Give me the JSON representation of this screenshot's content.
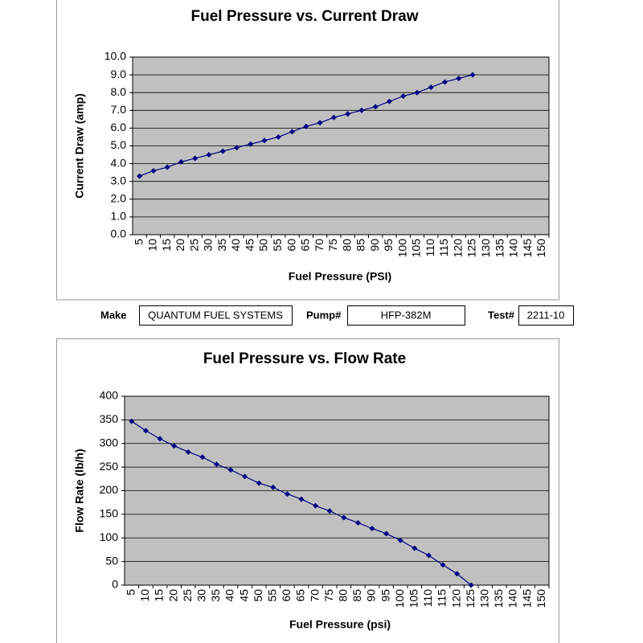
{
  "chart_data": [
    {
      "type": "line",
      "title": "Fuel Pressure vs. Current Draw",
      "x_label": "Fuel Pressure (PSI)",
      "y_label": "Current Draw (amp)",
      "categories": [
        5,
        10,
        15,
        20,
        25,
        30,
        35,
        40,
        45,
        50,
        55,
        60,
        65,
        70,
        75,
        80,
        85,
        90,
        95,
        100,
        105,
        110,
        115,
        120,
        125,
        130,
        135,
        140,
        145,
        150
      ],
      "series": [
        {
          "color": "#000080",
          "values": [
            3.3,
            3.6,
            3.8,
            4.1,
            4.3,
            4.5,
            4.7,
            4.9,
            5.1,
            5.3,
            5.5,
            5.8,
            6.1,
            6.3,
            6.6,
            6.8,
            7.0,
            7.2,
            7.5,
            7.8,
            8.0,
            8.3,
            8.6,
            8.8,
            9.0,
            null,
            null,
            null,
            null,
            null
          ]
        }
      ],
      "ylim": [
        0,
        10
      ],
      "yticks": [
        {
          "value": 0,
          "label": "0.0"
        },
        {
          "value": 1,
          "label": "1.0"
        },
        {
          "value": 2,
          "label": "2.0"
        },
        {
          "value": 3,
          "label": "3.0"
        },
        {
          "value": 4,
          "label": "4.0"
        },
        {
          "value": 5,
          "label": "5.0"
        },
        {
          "value": 6,
          "label": "6.0"
        },
        {
          "value": 7,
          "label": "7.0"
        },
        {
          "value": 8,
          "label": "8.0"
        },
        {
          "value": 9,
          "label": "9.0"
        },
        {
          "value": 10,
          "label": "10.0"
        }
      ],
      "grid": true
    },
    {
      "type": "line",
      "title": "Fuel Pressure vs. Flow Rate",
      "x_label": "Fuel Pressure (psi)",
      "y_label": "Flow Rate (lb/h)",
      "categories": [
        5,
        10,
        15,
        20,
        25,
        30,
        35,
        40,
        45,
        50,
        55,
        60,
        65,
        70,
        75,
        80,
        85,
        90,
        95,
        100,
        105,
        110,
        115,
        120,
        125,
        130,
        135,
        140,
        145,
        150
      ],
      "series": [
        {
          "color": "#000080",
          "values": [
            347,
            327,
            310,
            295,
            282,
            271,
            256,
            244,
            230,
            216,
            207,
            193,
            182,
            168,
            157,
            143,
            132,
            120,
            109,
            95,
            78,
            63,
            43,
            24,
            0,
            null,
            null,
            null,
            null,
            null
          ]
        }
      ],
      "ylim": [
        0,
        400
      ],
      "yticks": [
        0,
        50,
        100,
        150,
        200,
        250,
        300,
        350,
        400
      ],
      "grid": true
    }
  ],
  "form": {
    "make_label": "Make",
    "make": "QUANTUM FUEL SYSTEMS",
    "pump_label": "Pump#",
    "pump": "HFP-382M",
    "test_label": "Test#",
    "test": "2211-10"
  }
}
